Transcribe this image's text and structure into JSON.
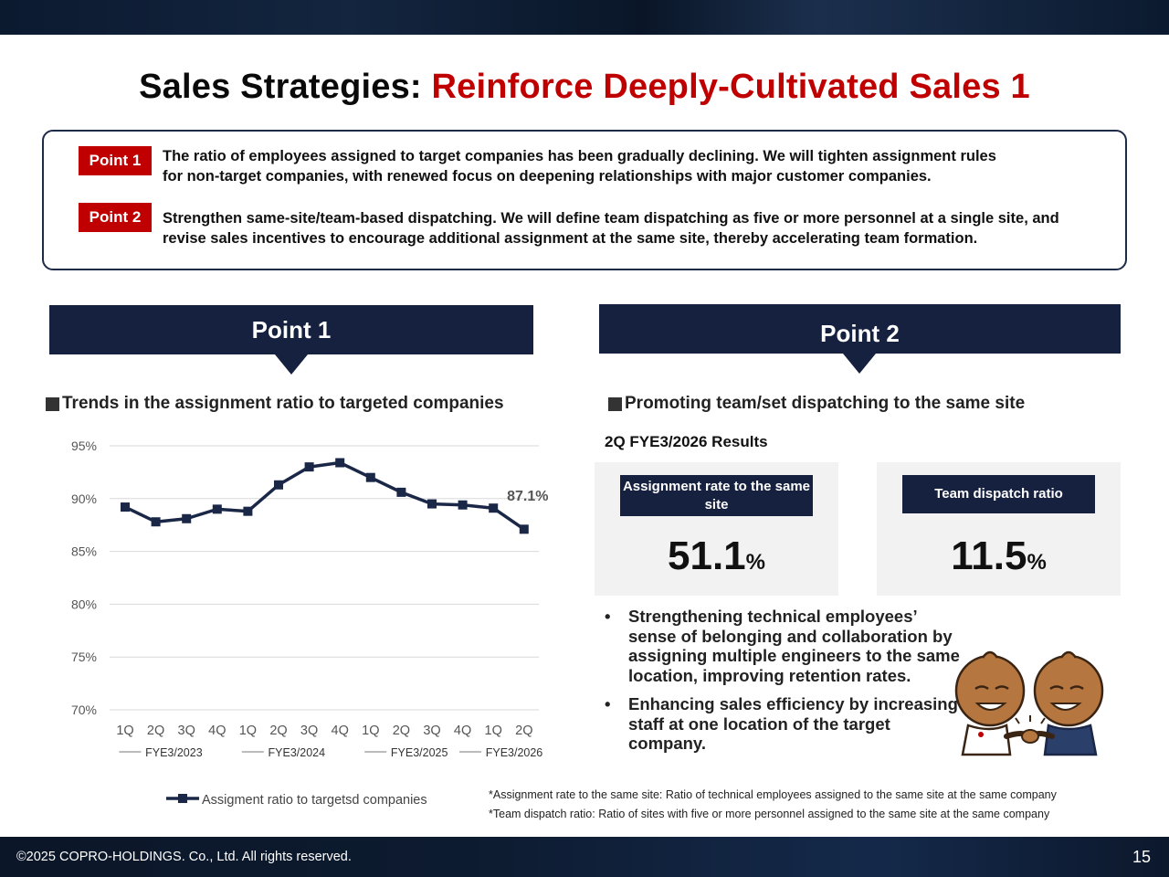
{
  "title": {
    "prefix": "Sales Strategies: ",
    "highlight": "Reinforce Deeply-Cultivated Sales 1"
  },
  "points": [
    {
      "badge": "Point 1",
      "line1": "The ratio of employees assigned to target companies has been gradually declining. We will tighten assignment rules",
      "line2": "for non-target companies, with renewed focus on deepening relationships with major customer companies."
    },
    {
      "badge": "Point 2",
      "line1": "Strengthen same-site/team-based dispatching. We will define team dispatching as five or more personnel at a single site, and",
      "line2": "revise sales incentives to encourage additional assignment at the same site, thereby accelerating team formation."
    }
  ],
  "left": {
    "header": "Point 1",
    "section": "Trends in the assignment ratio to targeted companies"
  },
  "right": {
    "header": "Point 2",
    "section": "Promoting team/set dispatching to the same site",
    "results_title": "2Q FYE3/2026 Results"
  },
  "kpis": [
    {
      "label": "Assignment rate to the same site",
      "value": "51.1",
      "unit": "%"
    },
    {
      "label": "Team dispatch ratio",
      "value": "11.5",
      "unit": "%"
    }
  ],
  "bullets": [
    {
      "dot": "•",
      "text": "Strengthening technical employees’ sense of belonging and collaboration by assigning multiple engineers to the same location, improving retention rates."
    },
    {
      "dot": "•",
      "text": "Enhancing sales efficiency by increasing staff at one location of the target company."
    }
  ],
  "footnotes": [
    "*Assignment rate to the same site: Ratio of technical employees assigned to the same site at the same company",
    "*Team dispatch ratio: Ratio of sites with five or more personnel assigned to the same site at the same company"
  ],
  "chart_data": {
    "type": "line",
    "title": "Trends in the assignment ratio to targeted companies",
    "categories": [
      "1Q",
      "2Q",
      "3Q",
      "4Q",
      "1Q",
      "2Q",
      "3Q",
      "4Q",
      "1Q",
      "2Q",
      "3Q",
      "4Q",
      "1Q",
      "2Q"
    ],
    "groups": [
      {
        "label": "FYE3/2023",
        "start": 0,
        "count": 4
      },
      {
        "label": "FYE3/2024",
        "start": 4,
        "count": 4
      },
      {
        "label": "FYE3/2025",
        "start": 8,
        "count": 4
      },
      {
        "label": "FYE3/2026",
        "start": 12,
        "count": 2
      }
    ],
    "series": [
      {
        "name": "Assigment ratio to targetsd companies",
        "values": [
          89.2,
          87.8,
          88.1,
          89.0,
          88.8,
          91.3,
          93.0,
          93.4,
          92.0,
          90.6,
          89.5,
          89.4,
          89.1,
          87.1
        ]
      }
    ],
    "ylim": [
      70,
      95
    ],
    "yticks": [
      95,
      90,
      85,
      80,
      75,
      70
    ],
    "ytick_labels": [
      "95%",
      "90%",
      "85%",
      "80%",
      "75%",
      "70%"
    ],
    "last_label": "87.1%",
    "grid": true,
    "legend": "bottom",
    "colors": {
      "line": "#1a2747",
      "grid": "#d9d9d9",
      "tick": "#555555"
    }
  },
  "footer": {
    "copyright": "©2025 COPRO-HOLDINGS. Co., Ltd. All rights reserved.",
    "page": "15"
  }
}
